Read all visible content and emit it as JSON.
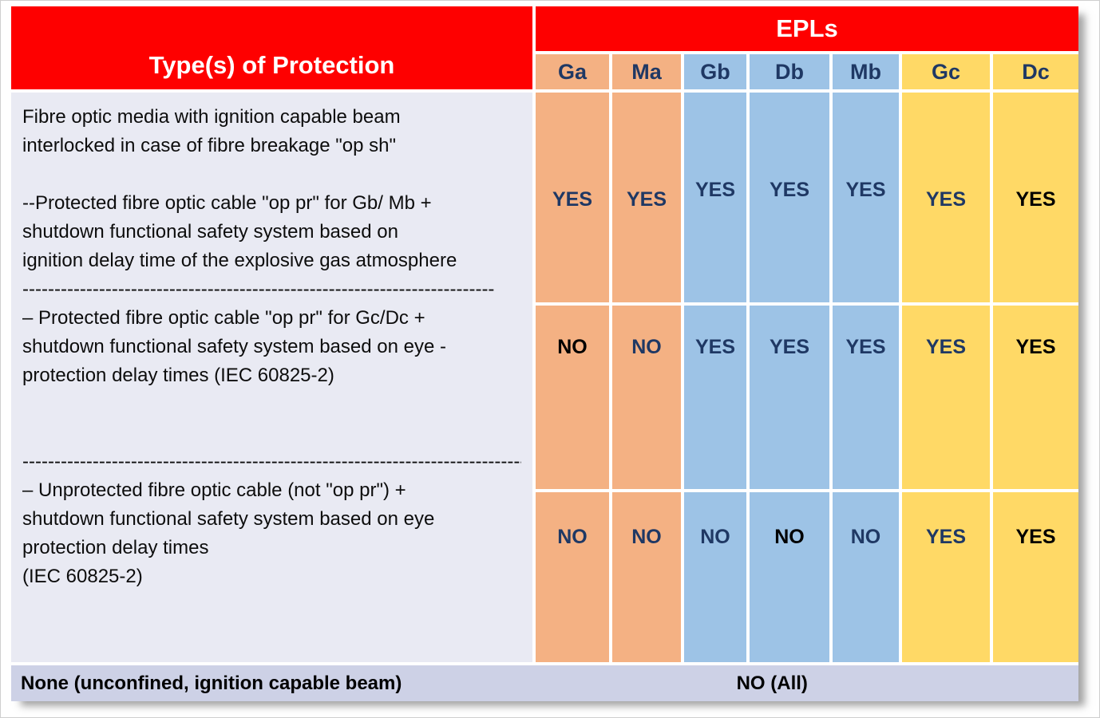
{
  "table": {
    "left_header": "Type(s) of Protection",
    "epls_header": "EPLs",
    "columns": [
      {
        "label": "Ga",
        "group": "orange"
      },
      {
        "label": "Ma",
        "group": "orange"
      },
      {
        "label": "Gb",
        "group": "blue"
      },
      {
        "label": "Db",
        "group": "blue"
      },
      {
        "label": "Mb",
        "group": "blue"
      },
      {
        "label": "Gc",
        "group": "yellow"
      },
      {
        "label": "Dc",
        "group": "yellow"
      }
    ],
    "description_lines": [
      "Fibre optic media with ignition capable beam",
      "interlocked in case of fibre breakage \"op sh\"",
      "",
      "--Protected fibre optic cable \"op pr\" for Gb/ Mb +",
      "shutdown functional safety system based on",
      "ignition delay time of the explosive gas atmosphere",
      "--------------------------------------------------------------------------",
      " – Protected fibre optic cable \"op pr\" for Gc/Dc +",
      "shutdown functional safety system based on eye -",
      "protection delay times (IEC 60825-2)",
      "",
      "",
      "------------------------------------------------------------------------------------",
      " – Unprotected fibre optic cable (not \"op pr\") +",
      "shutdown functional safety system based on eye",
      "protection delay times",
      "(IEC 60825-2)"
    ],
    "rows": [
      {
        "values": [
          {
            "text": "YES",
            "color": "navy"
          },
          {
            "text": "YES",
            "color": "navy"
          },
          {
            "text": "YES",
            "color": "navy"
          },
          {
            "text": "YES",
            "color": "navy"
          },
          {
            "text": "YES",
            "color": "navy"
          },
          {
            "text": "YES",
            "color": "navy"
          },
          {
            "text": "YES",
            "color": "black"
          }
        ]
      },
      {
        "values": [
          {
            "text": "NO",
            "color": "black"
          },
          {
            "text": "NO",
            "color": "navy"
          },
          {
            "text": "YES",
            "color": "navy"
          },
          {
            "text": "YES",
            "color": "navy"
          },
          {
            "text": "YES",
            "color": "navy"
          },
          {
            "text": "YES",
            "color": "navy"
          },
          {
            "text": "YES",
            "color": "black"
          }
        ]
      },
      {
        "values": [
          {
            "text": "NO",
            "color": "navy"
          },
          {
            "text": "NO",
            "color": "navy"
          },
          {
            "text": "NO",
            "color": "navy"
          },
          {
            "text": "NO",
            "color": "black"
          },
          {
            "text": "NO",
            "color": "navy"
          },
          {
            "text": "YES",
            "color": "navy"
          },
          {
            "text": "YES",
            "color": "black"
          }
        ]
      }
    ],
    "footer": {
      "label": "None (unconfined, ignition capable beam)",
      "value": "NO (All)"
    }
  },
  "colors": {
    "red": "#FE0000",
    "orange": "#F4B183",
    "blue": "#9DC3E6",
    "yellow": "#FFD966",
    "panel": "#E9EAF3",
    "footer_bg": "#CDD1E6",
    "navy": "#1F3864",
    "black": "#000000"
  }
}
